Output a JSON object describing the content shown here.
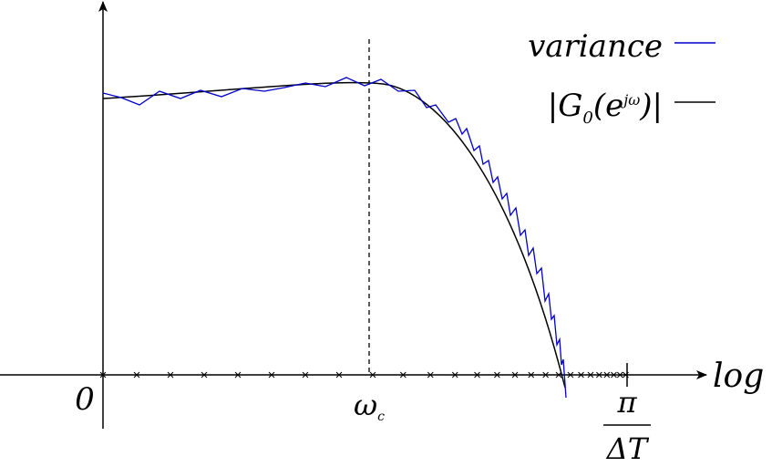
{
  "legend": [
    {
      "label": "variance"
    },
    {
      "parts": [
        "|G",
        "0",
        "(e",
        "jω",
        ")|"
      ]
    }
  ],
  "axis": {
    "x_label": "log",
    "origin": "0",
    "cutoff": {
      "symbol": "ω",
      "subscript": "c"
    },
    "end": {
      "numerator": "π",
      "denominator": "ΔT"
    }
  }
}
